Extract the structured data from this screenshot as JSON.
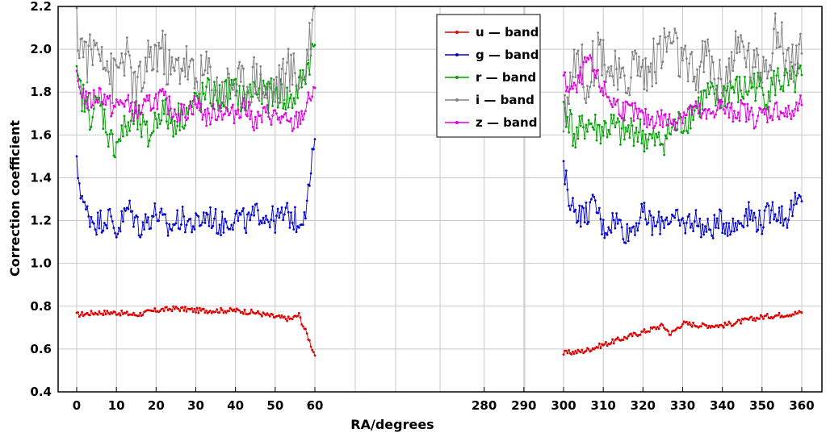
{
  "chart_data": {
    "type": "line",
    "title": "",
    "xlabel": "RA/degrees",
    "ylabel": "Correction coefficient",
    "ylim": [
      0.4,
      2.2
    ],
    "yticks": [
      "0.4",
      "0.6",
      "0.8",
      "1.0",
      "1.2",
      "1.4",
      "1.6",
      "1.8",
      "2.0",
      "2.2"
    ],
    "xticks": [
      "0",
      "10",
      "20",
      "30",
      "40",
      "50",
      "60",
      "280",
      "290",
      "300",
      "310",
      "320",
      "330",
      "340",
      "350",
      "360"
    ],
    "x_segments": [
      {
        "ra_range": [
          0,
          60
        ]
      },
      {
        "ra_range": [
          300,
          360
        ]
      }
    ],
    "grid": true,
    "legend_position": "top-right",
    "series": [
      {
        "name": "u — band",
        "color": "#e00000",
        "segments": [
          {
            "x": [
              0,
              5,
              10,
              15,
              20,
              25,
              30,
              35,
              40,
              45,
              50,
              54,
              56,
              57,
              58,
              59,
              60
            ],
            "y": [
              0.76,
              0.77,
              0.77,
              0.76,
              0.78,
              0.79,
              0.78,
              0.78,
              0.78,
              0.77,
              0.75,
              0.74,
              0.76,
              0.71,
              0.67,
              0.62,
              0.57
            ]
          },
          {
            "x": [
              300,
              305,
              310,
              315,
              320,
              325,
              327,
              330,
              335,
              340,
              345,
              350,
              355,
              360
            ],
            "y": [
              0.58,
              0.59,
              0.62,
              0.65,
              0.68,
              0.71,
              0.67,
              0.72,
              0.71,
              0.71,
              0.73,
              0.75,
              0.76,
              0.77
            ]
          }
        ]
      },
      {
        "name": "g — band",
        "color": "#0000d0",
        "segments": [
          {
            "x": [
              0,
              2,
              5,
              8,
              10,
              13,
              16,
              20,
              23,
              26,
              30,
              33,
              36,
              40,
              43,
              46,
              50,
              53,
              56,
              58,
              60
            ],
            "y": [
              1.45,
              1.25,
              1.19,
              1.22,
              1.15,
              1.26,
              1.17,
              1.24,
              1.16,
              1.21,
              1.18,
              1.23,
              1.18,
              1.22,
              1.19,
              1.24,
              1.2,
              1.23,
              1.19,
              1.28,
              1.58
            ]
          },
          {
            "x": [
              300,
              302,
              305,
              308,
              310,
              313,
              316,
              320,
              323,
              326,
              330,
              333,
              336,
              340,
              343,
              346,
              350,
              353,
              356,
              358,
              360
            ],
            "y": [
              1.43,
              1.27,
              1.22,
              1.28,
              1.16,
              1.21,
              1.14,
              1.23,
              1.17,
              1.22,
              1.18,
              1.21,
              1.15,
              1.2,
              1.17,
              1.24,
              1.19,
              1.26,
              1.21,
              1.27,
              1.29
            ]
          }
        ]
      },
      {
        "name": "r — band",
        "color": "#00a000",
        "segments": [
          {
            "x": [
              0,
              3,
              6,
              9,
              12,
              15,
              18,
              21,
              24,
              27,
              30,
              33,
              36,
              39,
              42,
              45,
              48,
              51,
              54,
              57,
              60
            ],
            "y": [
              1.85,
              1.7,
              1.74,
              1.55,
              1.62,
              1.68,
              1.58,
              1.72,
              1.66,
              1.7,
              1.75,
              1.79,
              1.77,
              1.81,
              1.76,
              1.82,
              1.78,
              1.8,
              1.75,
              1.86,
              2.02
            ]
          },
          {
            "x": [
              300,
              303,
              306,
              309,
              312,
              315,
              318,
              321,
              324,
              327,
              330,
              333,
              336,
              339,
              342,
              345,
              348,
              351,
              354,
              357,
              360
            ],
            "y": [
              1.75,
              1.58,
              1.66,
              1.62,
              1.64,
              1.6,
              1.63,
              1.58,
              1.56,
              1.62,
              1.66,
              1.72,
              1.78,
              1.76,
              1.82,
              1.8,
              1.84,
              1.79,
              1.86,
              1.83,
              1.88
            ]
          }
        ]
      },
      {
        "name": "i — band",
        "color": "#808080",
        "segments": [
          {
            "x": [
              0,
              3,
              6,
              9,
              12,
              15,
              18,
              21,
              24,
              27,
              30,
              33,
              36,
              39,
              42,
              45,
              48,
              51,
              54,
              57,
              60
            ],
            "y": [
              2.08,
              1.95,
              2.05,
              1.85,
              1.98,
              1.8,
              1.92,
              2.02,
              1.88,
              1.96,
              1.84,
              1.9,
              1.78,
              1.86,
              1.82,
              1.88,
              1.8,
              1.84,
              1.9,
              1.86,
              2.2
            ]
          },
          {
            "x": [
              300,
              303,
              306,
              309,
              312,
              315,
              318,
              321,
              324,
              327,
              330,
              333,
              336,
              339,
              342,
              345,
              348,
              351,
              354,
              357,
              360
            ],
            "y": [
              1.7,
              1.98,
              1.85,
              2.02,
              1.9,
              1.82,
              1.95,
              1.88,
              1.98,
              2.05,
              1.92,
              1.86,
              1.98,
              1.84,
              1.92,
              2.02,
              1.9,
              1.96,
              2.08,
              1.94,
              1.98
            ]
          }
        ]
      },
      {
        "name": "z — band",
        "color": "#e000e0",
        "segments": [
          {
            "x": [
              0,
              3,
              6,
              9,
              12,
              15,
              18,
              21,
              24,
              27,
              30,
              33,
              36,
              39,
              42,
              45,
              48,
              51,
              54,
              57,
              60
            ],
            "y": [
              1.85,
              1.75,
              1.8,
              1.72,
              1.76,
              1.7,
              1.74,
              1.78,
              1.72,
              1.7,
              1.75,
              1.68,
              1.72,
              1.69,
              1.74,
              1.66,
              1.7,
              1.68,
              1.64,
              1.7,
              1.82
            ]
          },
          {
            "x": [
              300,
              303,
              306,
              309,
              312,
              315,
              318,
              321,
              324,
              327,
              330,
              333,
              336,
              339,
              342,
              345,
              348,
              351,
              354,
              357,
              360
            ],
            "y": [
              1.85,
              1.8,
              1.95,
              1.84,
              1.76,
              1.72,
              1.7,
              1.67,
              1.68,
              1.66,
              1.7,
              1.72,
              1.68,
              1.74,
              1.7,
              1.72,
              1.68,
              1.7,
              1.72,
              1.69,
              1.74
            ]
          }
        ]
      }
    ]
  }
}
